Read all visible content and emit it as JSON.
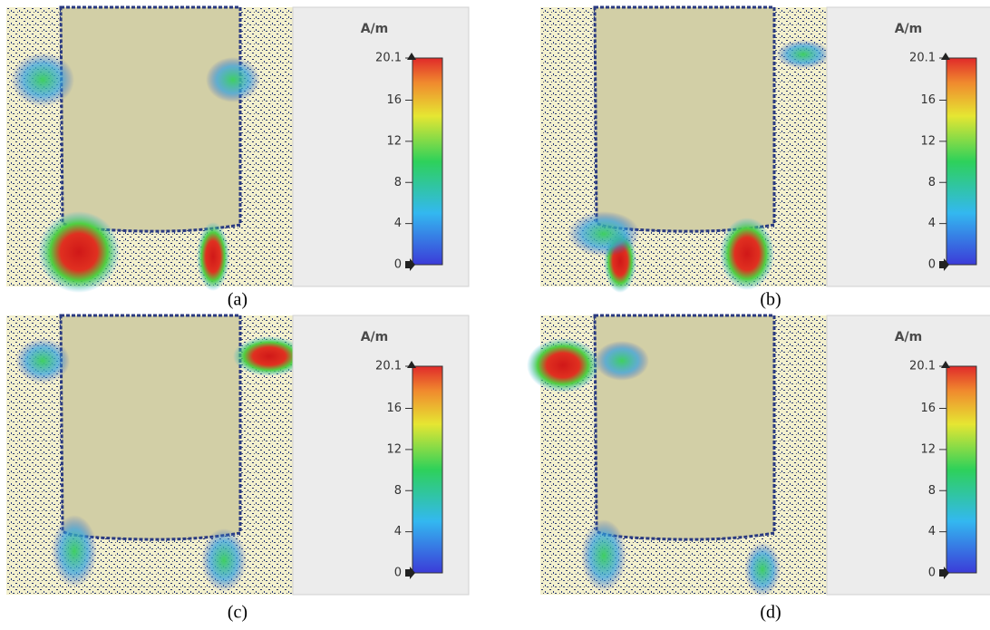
{
  "panels": [
    {
      "caption": "(a)",
      "unit": "A/m",
      "colorbar": {
        "min": 0,
        "max": 20.1,
        "ticks": [
          0,
          4,
          8,
          12,
          16,
          20.1
        ]
      }
    },
    {
      "caption": "(b)",
      "unit": "A/m",
      "colorbar": {
        "min": 0,
        "max": 20.1,
        "ticks": [
          0,
          4,
          8,
          12,
          16,
          20.1
        ]
      }
    },
    {
      "caption": "(c)",
      "unit": "A/m",
      "colorbar": {
        "min": 0,
        "max": 20.1,
        "ticks": [
          0,
          4,
          8,
          12,
          16,
          20.1
        ]
      }
    },
    {
      "caption": "(d)",
      "unit": "A/m",
      "colorbar": {
        "min": 0,
        "max": 20.1,
        "ticks": [
          0,
          4,
          8,
          12,
          16,
          20.1
        ]
      }
    }
  ]
}
